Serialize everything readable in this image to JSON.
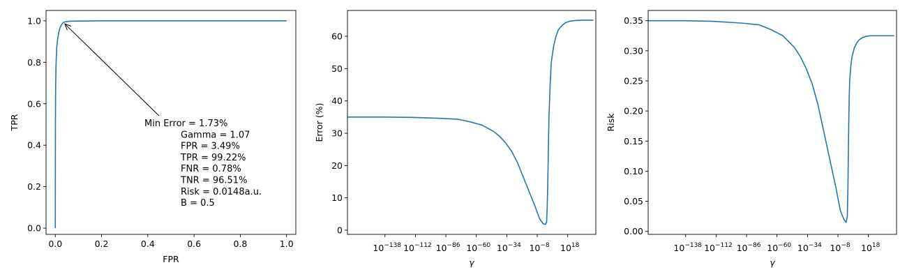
{
  "colors": {
    "line": "#1f77b4",
    "axis": "#000000",
    "background": "#ffffff"
  },
  "chart_data": [
    {
      "type": "line",
      "xlabel": "FPR",
      "ylabel": "TPR",
      "xlim": [
        -0.04,
        1.04
      ],
      "ylim": [
        -0.03,
        1.05
      ],
      "x_ticks": [
        0.0,
        0.2,
        0.4,
        0.6,
        0.8,
        1.0
      ],
      "x_tick_labels": [
        "0.0",
        "0.2",
        "0.4",
        "0.6",
        "0.8",
        "1.0"
      ],
      "y_ticks": [
        0.0,
        0.2,
        0.4,
        0.6,
        0.8,
        1.0
      ],
      "y_tick_labels": [
        "0.0",
        "0.2",
        "0.4",
        "0.6",
        "0.8",
        "1.0"
      ],
      "grid": false,
      "series": [
        {
          "x": [
            0.0,
            0.0003,
            0.0008,
            0.0015,
            0.003,
            0.006,
            0.01,
            0.015,
            0.02,
            0.025,
            0.03,
            0.0349,
            0.045,
            0.06,
            0.1,
            0.2,
            0.4,
            0.6,
            0.8,
            1.0
          ],
          "y": [
            0.0,
            0.35,
            0.55,
            0.68,
            0.78,
            0.87,
            0.91,
            0.945,
            0.965,
            0.978,
            0.986,
            0.9922,
            0.996,
            0.998,
            0.999,
            1.0,
            1.0,
            1.0,
            1.0,
            1.0
          ]
        }
      ],
      "annotation": {
        "point": [
          0.0349,
          0.9922
        ],
        "lines": [
          "Min Error = 1.73%",
          "Gamma = 1.07",
          "FPR = 3.49%",
          "TPR = 99.22%",
          "FNR = 0.78%",
          "TNR = 96.51%",
          "Risk = 0.0148a.u.",
          "B = 0.5"
        ]
      }
    },
    {
      "type": "line",
      "xlabel": "γ",
      "ylabel": "Error (%)",
      "xscale": "log",
      "xlim_exp": [
        -170,
        42
      ],
      "ylim": [
        -1.3,
        68
      ],
      "x_ticks_exp": [
        -138,
        -112,
        -86,
        -60,
        -34,
        -8,
        18
      ],
      "x_tick_labels": [
        "−138",
        "−112",
        "−86",
        "−60",
        "−34",
        "−8",
        "18"
      ],
      "y_ticks": [
        0,
        10,
        20,
        30,
        40,
        50,
        60
      ],
      "y_tick_labels": [
        "0",
        "10",
        "20",
        "30",
        "40",
        "50",
        "60"
      ],
      "grid": false,
      "series": [
        {
          "x_exp": [
            -170,
            -140,
            -115,
            -90,
            -75,
            -65,
            -60,
            -55,
            -50,
            -45,
            -40,
            -35,
            -30,
            -25,
            -20,
            -15,
            -10,
            -6,
            -3,
            -1,
            0,
            0.5,
            1,
            1.5,
            2,
            3,
            4,
            6,
            8,
            10,
            13,
            16,
            20,
            25,
            30,
            35,
            40
          ],
          "y": [
            35.0,
            35.0,
            34.9,
            34.6,
            34.3,
            33.5,
            33.0,
            32.5,
            31.5,
            30.5,
            29.0,
            27.0,
            24.5,
            21.0,
            16.5,
            12.0,
            7.5,
            3.5,
            2.0,
            1.8,
            2.5,
            7.0,
            15.0,
            25.0,
            35.0,
            45.0,
            52.0,
            57.0,
            60.0,
            62.0,
            63.3,
            64.2,
            64.7,
            64.9,
            65.0,
            65.0,
            65.0
          ]
        }
      ]
    },
    {
      "type": "line",
      "xlabel": "γ",
      "ylabel": "Risk",
      "xscale": "log",
      "xlim_exp": [
        -170,
        42
      ],
      "ylim": [
        -0.005,
        0.367
      ],
      "x_ticks_exp": [
        -138,
        -112,
        -86,
        -60,
        -34,
        -8,
        18
      ],
      "x_tick_labels": [
        "−138",
        "−112",
        "−86",
        "−60",
        "−34",
        "−8",
        "18"
      ],
      "y_ticks": [
        0.0,
        0.05,
        0.1,
        0.15,
        0.2,
        0.25,
        0.3,
        0.35
      ],
      "y_tick_labels": [
        "0.00",
        "0.05",
        "0.10",
        "0.15",
        "0.20",
        "0.25",
        "0.30",
        "0.35"
      ],
      "grid": false,
      "series": [
        {
          "x_exp": [
            -170,
            -140,
            -115,
            -90,
            -75,
            -65,
            -60,
            -55,
            -50,
            -45,
            -40,
            -35,
            -30,
            -25,
            -20,
            -15,
            -10,
            -6,
            -3,
            -1,
            0,
            0.5,
            1,
            1.5,
            2,
            3,
            4,
            6,
            8,
            10,
            13,
            16,
            20,
            25,
            30,
            35,
            40
          ],
          "y": [
            0.35,
            0.35,
            0.349,
            0.346,
            0.343,
            0.335,
            0.33,
            0.325,
            0.315,
            0.305,
            0.29,
            0.27,
            0.245,
            0.21,
            0.165,
            0.12,
            0.075,
            0.035,
            0.02,
            0.015,
            0.025,
            0.07,
            0.15,
            0.215,
            0.25,
            0.275,
            0.29,
            0.305,
            0.313,
            0.318,
            0.322,
            0.324,
            0.325,
            0.325,
            0.325,
            0.325,
            0.325
          ]
        }
      ]
    }
  ]
}
